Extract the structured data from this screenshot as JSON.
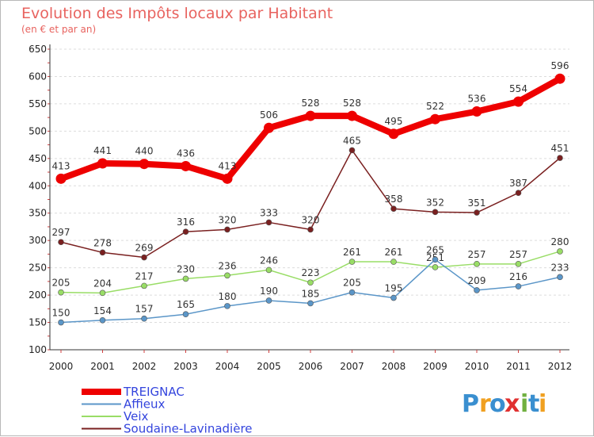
{
  "chart_data": {
    "type": "line",
    "title": "Evolution des Impôts locaux par Habitant",
    "subtitle": "(en € et par an)",
    "xlabel": "",
    "ylabel": "",
    "ylim": [
      100,
      650
    ],
    "yticks": [
      "100",
      "150",
      "200",
      "250",
      "300",
      "350",
      "400",
      "450",
      "500",
      "550",
      "600",
      "650"
    ],
    "categories": [
      "2000",
      "2001",
      "2002",
      "2003",
      "2004",
      "2005",
      "2006",
      "2007",
      "2008",
      "2009",
      "2010",
      "2011",
      "2012"
    ],
    "legend_position": "bottom-left",
    "series": [
      {
        "name": "TREIGNAC",
        "color": "#ee0000",
        "values": [
          413,
          441,
          440,
          436,
          413,
          506,
          528,
          528,
          495,
          522,
          536,
          554,
          596
        ],
        "labels": [
          "413",
          "441",
          "440",
          "436",
          "413",
          "506",
          "528",
          "528",
          "495",
          "522",
          "536",
          "554",
          "596"
        ]
      },
      {
        "name": "Affieux",
        "color": "#5b96c8",
        "values": [
          150,
          154,
          157,
          165,
          180,
          190,
          185,
          205,
          195,
          265,
          209,
          216,
          233
        ],
        "labels": [
          "150",
          "154",
          "157",
          "165",
          "180",
          "190",
          "185",
          "205",
          "195",
          "265",
          "209",
          "216",
          "233"
        ]
      },
      {
        "name": "Veix",
        "color": "#99dd66",
        "values": [
          205,
          204,
          217,
          230,
          236,
          246,
          223,
          261,
          261,
          251,
          257,
          257,
          280
        ],
        "labels": [
          "205",
          "204",
          "217",
          "230",
          "236",
          "246",
          "223",
          "261",
          "261",
          "251",
          "257",
          "257",
          "280"
        ]
      },
      {
        "name": "Soudaine-Lavinadière",
        "color": "#7a2020",
        "values": [
          297,
          278,
          269,
          316,
          320,
          333,
          320,
          465,
          358,
          352,
          351,
          387,
          451
        ],
        "labels": [
          "297",
          "278",
          "269",
          "316",
          "320",
          "333",
          "320",
          "465",
          "358",
          "352",
          "351",
          "387",
          "451"
        ]
      }
    ]
  },
  "logo": {
    "letters": [
      "P",
      "r",
      "o",
      "x",
      "i",
      "t",
      "i"
    ],
    "colors": [
      "#3a8fd0",
      "#f0a020",
      "#3a8fd0",
      "#e03030",
      "#70b040",
      "#3a8fd0",
      "#f0a020"
    ]
  }
}
